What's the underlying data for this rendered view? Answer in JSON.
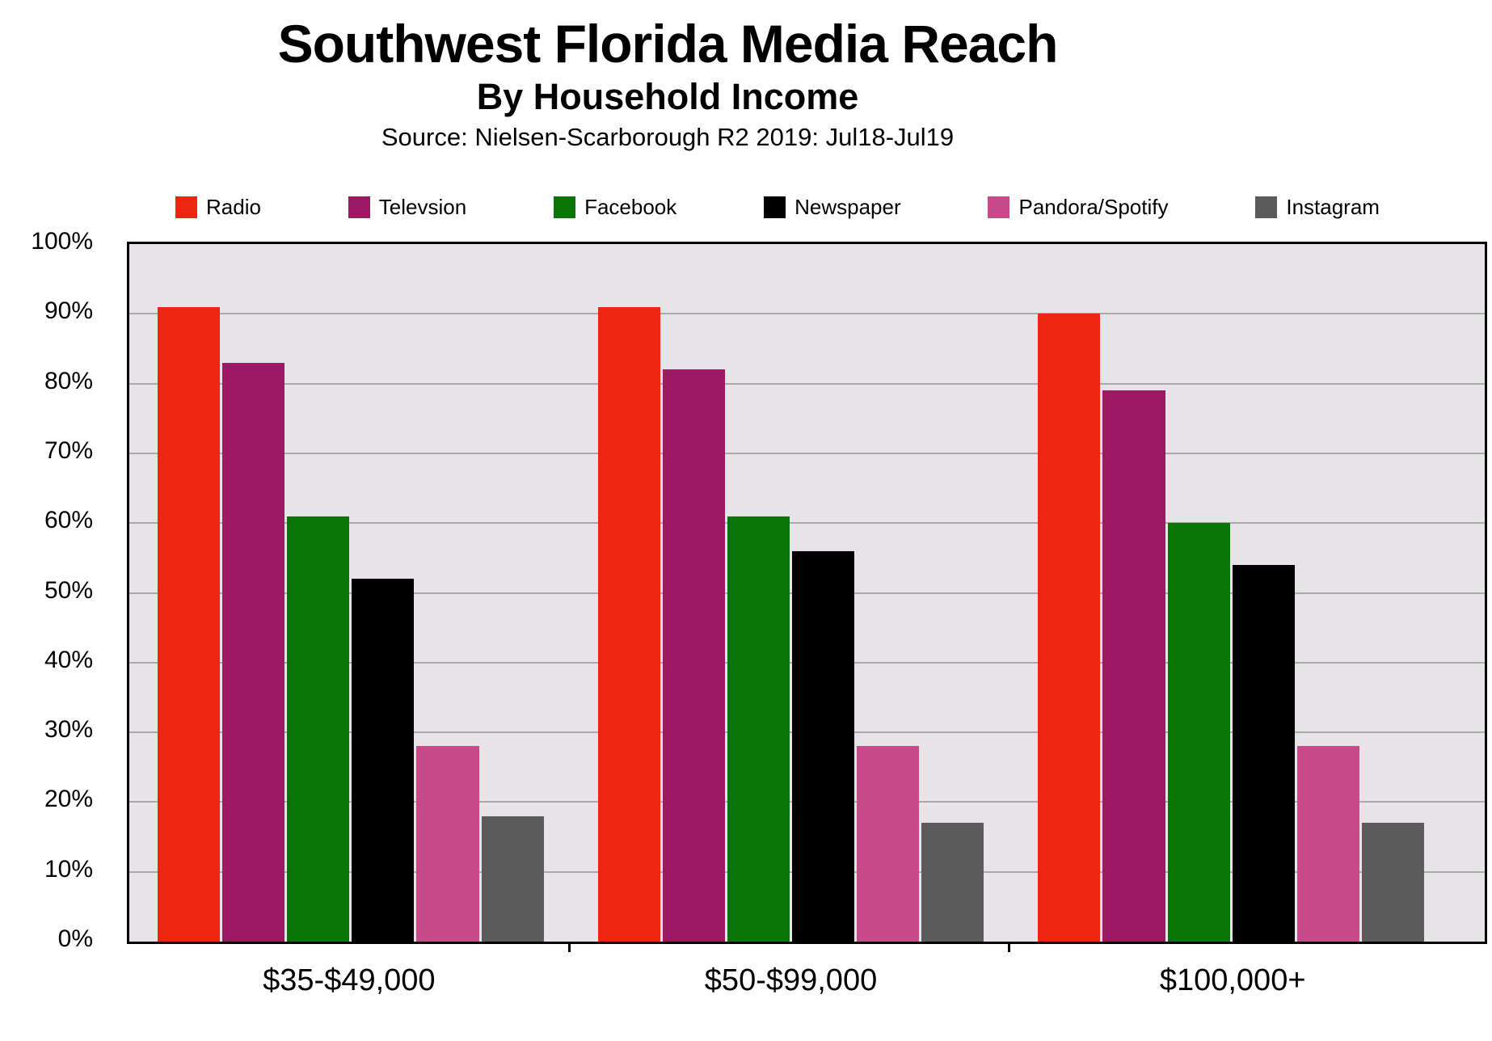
{
  "header": {
    "title": "Southwest Florida Media Reach",
    "subtitle": "By Household Income",
    "source": "Source: Nielsen-Scarborough R2 2019: Jul18-Jul19"
  },
  "chart_data": {
    "type": "bar",
    "title": "Southwest Florida Media Reach",
    "subtitle": "By Household Income",
    "source": "Source: Nielsen-Scarborough R2 2019: Jul18-Jul19",
    "categories": [
      "$35-$49,000",
      "$50-$99,000",
      "$100,000+"
    ],
    "series": [
      {
        "name": "Radio",
        "color": "#ed2511",
        "values": [
          91,
          91,
          90
        ]
      },
      {
        "name": "Televsion",
        "color": "#9c1a63",
        "values": [
          83,
          82,
          79
        ]
      },
      {
        "name": "Facebook",
        "color": "#077607",
        "values": [
          61,
          61,
          60
        ]
      },
      {
        "name": "Newspaper",
        "color": "#000000",
        "values": [
          52,
          56,
          54
        ]
      },
      {
        "name": "Pandora/Spotify",
        "color": "#c74b8b",
        "values": [
          28,
          28,
          28
        ]
      },
      {
        "name": "Instagram",
        "color": "#5b5b5b",
        "values": [
          18,
          17,
          17
        ]
      }
    ],
    "xlabel": "",
    "ylabel": "",
    "ylim": [
      0,
      100
    ],
    "ytick_step": 10,
    "ytick_labels": [
      "0%",
      "10%",
      "20%",
      "30%",
      "40%",
      "50%",
      "60%",
      "70%",
      "80%",
      "90%",
      "100%"
    ],
    "grid": true,
    "legend_position": "top",
    "colors": {
      "plot_background": "#e7e4e7",
      "gridline": "#a9a9a9",
      "axis_border": "#000000",
      "page_background": "#ffffff"
    }
  }
}
